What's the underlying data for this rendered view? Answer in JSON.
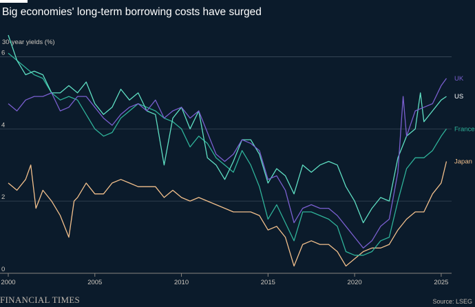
{
  "title": "Big economies' long-term borrowing costs have surged",
  "brand": "FINANCIAL TIMES",
  "source": "Source: LSEG",
  "chart_data": {
    "type": "line",
    "title": "Big economies' long-term borrowing costs have surged",
    "ylabel": "30-year yields (%)",
    "xlabel": "",
    "xlim": [
      2000,
      2025.6
    ],
    "ylim": [
      0,
      7
    ],
    "x_ticks": [
      2000,
      2005,
      2010,
      2015,
      2020,
      2025
    ],
    "y_ticks": [
      0,
      2,
      4,
      6
    ],
    "grid": true,
    "legend": "direct-labels-right",
    "series": [
      {
        "name": "UK",
        "color": "#7a5fd0",
        "points": [
          [
            2000.0,
            4.7
          ],
          [
            2000.5,
            4.5
          ],
          [
            2001.0,
            4.8
          ],
          [
            2001.5,
            4.9
          ],
          [
            2002.0,
            4.9
          ],
          [
            2002.5,
            5.0
          ],
          [
            2003.0,
            4.5
          ],
          [
            2003.5,
            4.6
          ],
          [
            2004.0,
            4.9
          ],
          [
            2004.5,
            4.9
          ],
          [
            2005.0,
            4.6
          ],
          [
            2005.5,
            4.3
          ],
          [
            2006.0,
            4.1
          ],
          [
            2006.5,
            4.4
          ],
          [
            2007.0,
            4.6
          ],
          [
            2007.5,
            4.7
          ],
          [
            2008.0,
            4.5
          ],
          [
            2008.5,
            4.8
          ],
          [
            2009.0,
            4.3
          ],
          [
            2009.5,
            4.5
          ],
          [
            2010.0,
            4.6
          ],
          [
            2010.5,
            4.3
          ],
          [
            2011.0,
            4.5
          ],
          [
            2011.5,
            3.9
          ],
          [
            2012.0,
            3.3
          ],
          [
            2012.5,
            3.1
          ],
          [
            2013.0,
            3.3
          ],
          [
            2013.5,
            3.7
          ],
          [
            2014.0,
            3.6
          ],
          [
            2014.5,
            3.4
          ],
          [
            2015.0,
            2.6
          ],
          [
            2015.5,
            2.7
          ],
          [
            2016.0,
            2.3
          ],
          [
            2016.5,
            1.4
          ],
          [
            2017.0,
            1.8
          ],
          [
            2017.5,
            1.9
          ],
          [
            2018.0,
            1.8
          ],
          [
            2018.5,
            1.8
          ],
          [
            2019.0,
            1.6
          ],
          [
            2019.5,
            1.3
          ],
          [
            2020.0,
            1.0
          ],
          [
            2020.5,
            0.7
          ],
          [
            2021.0,
            0.9
          ],
          [
            2021.5,
            1.3
          ],
          [
            2022.0,
            1.5
          ],
          [
            2022.5,
            2.8
          ],
          [
            2022.8,
            4.9
          ],
          [
            2023.0,
            3.8
          ],
          [
            2023.5,
            4.5
          ],
          [
            2024.0,
            4.6
          ],
          [
            2024.5,
            4.7
          ],
          [
            2025.0,
            5.2
          ],
          [
            2025.3,
            5.4
          ]
        ]
      },
      {
        "name": "US",
        "color": "#5fe0c4",
        "points": [
          [
            2000.0,
            6.6
          ],
          [
            2000.5,
            5.9
          ],
          [
            2001.0,
            5.5
          ],
          [
            2001.5,
            5.6
          ],
          [
            2002.0,
            5.5
          ],
          [
            2002.5,
            5.0
          ],
          [
            2003.0,
            5.0
          ],
          [
            2003.5,
            5.2
          ],
          [
            2004.0,
            5.0
          ],
          [
            2004.5,
            5.3
          ],
          [
            2005.0,
            4.7
          ],
          [
            2005.5,
            4.4
          ],
          [
            2006.0,
            4.6
          ],
          [
            2006.5,
            5.1
          ],
          [
            2007.0,
            4.8
          ],
          [
            2007.5,
            5.0
          ],
          [
            2008.0,
            4.5
          ],
          [
            2008.5,
            4.4
          ],
          [
            2009.0,
            3.0
          ],
          [
            2009.5,
            4.3
          ],
          [
            2010.0,
            4.6
          ],
          [
            2010.5,
            4.0
          ],
          [
            2011.0,
            4.5
          ],
          [
            2011.5,
            3.2
          ],
          [
            2012.0,
            3.0
          ],
          [
            2012.5,
            2.6
          ],
          [
            2013.0,
            3.1
          ],
          [
            2013.5,
            3.7
          ],
          [
            2014.0,
            3.7
          ],
          [
            2014.5,
            3.3
          ],
          [
            2015.0,
            2.5
          ],
          [
            2015.5,
            2.9
          ],
          [
            2016.0,
            2.7
          ],
          [
            2016.5,
            2.2
          ],
          [
            2017.0,
            3.0
          ],
          [
            2017.5,
            2.8
          ],
          [
            2018.0,
            3.0
          ],
          [
            2018.5,
            3.1
          ],
          [
            2019.0,
            3.0
          ],
          [
            2019.5,
            2.4
          ],
          [
            2020.0,
            2.0
          ],
          [
            2020.5,
            1.4
          ],
          [
            2021.0,
            1.8
          ],
          [
            2021.5,
            2.1
          ],
          [
            2022.0,
            2.0
          ],
          [
            2022.5,
            3.2
          ],
          [
            2023.0,
            3.8
          ],
          [
            2023.5,
            4.0
          ],
          [
            2023.8,
            5.0
          ],
          [
            2024.0,
            4.2
          ],
          [
            2024.5,
            4.5
          ],
          [
            2025.0,
            4.8
          ],
          [
            2025.3,
            4.9
          ]
        ]
      },
      {
        "name": "France",
        "color": "#2fb39a",
        "points": [
          [
            2000.0,
            6.1
          ],
          [
            2000.5,
            5.9
          ],
          [
            2001.0,
            5.7
          ],
          [
            2001.5,
            5.5
          ],
          [
            2002.0,
            5.4
          ],
          [
            2002.5,
            5.0
          ],
          [
            2003.0,
            4.8
          ],
          [
            2003.5,
            4.9
          ],
          [
            2004.0,
            4.8
          ],
          [
            2004.5,
            4.4
          ],
          [
            2005.0,
            4.0
          ],
          [
            2005.5,
            3.8
          ],
          [
            2006.0,
            3.9
          ],
          [
            2006.5,
            4.3
          ],
          [
            2007.0,
            4.5
          ],
          [
            2007.5,
            4.7
          ],
          [
            2008.0,
            4.6
          ],
          [
            2008.5,
            4.5
          ],
          [
            2009.0,
            4.3
          ],
          [
            2009.5,
            4.2
          ],
          [
            2010.0,
            4.0
          ],
          [
            2010.5,
            3.5
          ],
          [
            2011.0,
            3.8
          ],
          [
            2011.5,
            3.6
          ],
          [
            2012.0,
            3.2
          ],
          [
            2012.5,
            3.0
          ],
          [
            2013.0,
            2.8
          ],
          [
            2013.5,
            3.4
          ],
          [
            2014.0,
            3.0
          ],
          [
            2014.5,
            2.4
          ],
          [
            2015.0,
            1.5
          ],
          [
            2015.5,
            1.9
          ],
          [
            2016.0,
            1.4
          ],
          [
            2016.5,
            0.9
          ],
          [
            2017.0,
            1.7
          ],
          [
            2017.5,
            1.7
          ],
          [
            2018.0,
            1.6
          ],
          [
            2018.5,
            1.5
          ],
          [
            2019.0,
            1.3
          ],
          [
            2019.5,
            0.6
          ],
          [
            2020.0,
            0.5
          ],
          [
            2020.5,
            0.5
          ],
          [
            2021.0,
            0.6
          ],
          [
            2021.5,
            0.9
          ],
          [
            2022.0,
            1.0
          ],
          [
            2022.5,
            2.0
          ],
          [
            2023.0,
            2.9
          ],
          [
            2023.5,
            3.2
          ],
          [
            2024.0,
            3.2
          ],
          [
            2024.5,
            3.4
          ],
          [
            2025.0,
            3.8
          ],
          [
            2025.3,
            4.0
          ]
        ]
      },
      {
        "name": "Japan",
        "color": "#f3c08c",
        "points": [
          [
            2000.0,
            2.5
          ],
          [
            2000.5,
            2.3
          ],
          [
            2001.0,
            2.6
          ],
          [
            2001.3,
            3.0
          ],
          [
            2001.6,
            1.8
          ],
          [
            2002.0,
            2.3
          ],
          [
            2002.5,
            2.0
          ],
          [
            2003.0,
            1.6
          ],
          [
            2003.5,
            1.0
          ],
          [
            2003.8,
            2.0
          ],
          [
            2004.0,
            2.1
          ],
          [
            2004.5,
            2.5
          ],
          [
            2005.0,
            2.2
          ],
          [
            2005.5,
            2.2
          ],
          [
            2006.0,
            2.5
          ],
          [
            2006.5,
            2.6
          ],
          [
            2007.0,
            2.5
          ],
          [
            2007.5,
            2.4
          ],
          [
            2008.0,
            2.4
          ],
          [
            2008.5,
            2.4
          ],
          [
            2009.0,
            2.1
          ],
          [
            2009.5,
            2.3
          ],
          [
            2010.0,
            2.1
          ],
          [
            2010.5,
            2.0
          ],
          [
            2011.0,
            2.1
          ],
          [
            2011.5,
            2.0
          ],
          [
            2012.0,
            1.9
          ],
          [
            2012.5,
            1.8
          ],
          [
            2013.0,
            1.7
          ],
          [
            2013.5,
            1.7
          ],
          [
            2014.0,
            1.7
          ],
          [
            2014.5,
            1.6
          ],
          [
            2015.0,
            1.2
          ],
          [
            2015.5,
            1.3
          ],
          [
            2016.0,
            1.0
          ],
          [
            2016.5,
            0.2
          ],
          [
            2017.0,
            0.8
          ],
          [
            2017.5,
            0.9
          ],
          [
            2018.0,
            0.8
          ],
          [
            2018.5,
            0.8
          ],
          [
            2019.0,
            0.6
          ],
          [
            2019.5,
            0.2
          ],
          [
            2020.0,
            0.4
          ],
          [
            2020.5,
            0.6
          ],
          [
            2021.0,
            0.7
          ],
          [
            2021.5,
            0.7
          ],
          [
            2022.0,
            0.8
          ],
          [
            2022.5,
            1.2
          ],
          [
            2023.0,
            1.5
          ],
          [
            2023.5,
            1.7
          ],
          [
            2024.0,
            1.7
          ],
          [
            2024.5,
            2.2
          ],
          [
            2025.0,
            2.5
          ],
          [
            2025.3,
            3.1
          ]
        ]
      }
    ]
  }
}
